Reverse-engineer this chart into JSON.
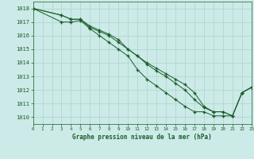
{
  "title": "Graphe pression niveau de la mer (hPa)",
  "bg_color": "#cceae7",
  "grid_color": "#b0d8d0",
  "line_color": "#1a5c2a",
  "xlim": [
    0,
    23
  ],
  "ylim": [
    1009.5,
    1018.5
  ],
  "yticks": [
    1010,
    1011,
    1012,
    1013,
    1014,
    1015,
    1016,
    1017,
    1018
  ],
  "xticks": [
    0,
    1,
    2,
    3,
    4,
    5,
    6,
    7,
    8,
    9,
    10,
    11,
    12,
    13,
    14,
    15,
    16,
    17,
    18,
    19,
    20,
    21,
    22,
    23
  ],
  "line1_x": [
    0,
    3,
    4,
    5,
    6,
    7,
    8,
    9,
    10,
    11,
    12,
    13,
    14,
    15,
    16,
    17,
    18,
    19,
    20,
    21,
    22,
    23
  ],
  "line1_y": [
    1018,
    1017.5,
    1017.2,
    1017.2,
    1016.7,
    1016.4,
    1016.1,
    1015.7,
    1015.0,
    1014.5,
    1014.0,
    1013.6,
    1013.2,
    1012.8,
    1012.4,
    1011.8,
    1010.8,
    1010.4,
    1010.4,
    1010.1,
    1011.8,
    1012.2
  ],
  "line2_x": [
    0,
    3,
    4,
    5,
    6,
    7,
    8,
    9,
    10,
    11,
    12,
    13,
    14,
    15,
    16,
    17,
    18,
    19,
    20,
    21,
    22,
    23
  ],
  "line2_y": [
    1018,
    1017.5,
    1017.2,
    1017.2,
    1016.6,
    1016.3,
    1016.0,
    1015.5,
    1015.0,
    1014.5,
    1013.9,
    1013.4,
    1013.0,
    1012.5,
    1012.0,
    1011.3,
    1010.7,
    1010.4,
    1010.4,
    1010.1,
    1011.8,
    1012.2
  ],
  "line3_x": [
    0,
    3,
    4,
    5,
    6,
    7,
    8,
    9,
    10,
    11,
    12,
    13,
    14,
    15,
    16,
    17,
    18,
    19,
    20,
    21,
    22,
    23
  ],
  "line3_y": [
    1018,
    1017.0,
    1017.0,
    1017.1,
    1016.5,
    1016.0,
    1015.5,
    1015.0,
    1014.5,
    1013.5,
    1012.8,
    1012.3,
    1011.8,
    1011.3,
    1010.8,
    1010.4,
    1010.4,
    1010.1,
    1010.1,
    1010.1,
    1011.8,
    1012.2
  ]
}
